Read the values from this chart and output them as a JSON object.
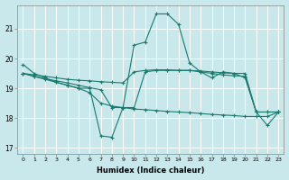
{
  "background_color": "#c8e8ec",
  "grid_color": "#aed4d8",
  "line_color": "#1a7a6e",
  "xlabel": "Humidex (Indice chaleur)",
  "xlim": [
    -0.5,
    23.5
  ],
  "ylim": [
    16.8,
    21.8
  ],
  "yticks": [
    17,
    18,
    19,
    20,
    21
  ],
  "series1": [
    19.8,
    19.5,
    19.35,
    19.2,
    19.1,
    19.0,
    19.0,
    17.4,
    17.35,
    18.35,
    20.45,
    20.55,
    21.5,
    21.5,
    21.15,
    19.85,
    19.55,
    19.35,
    19.55,
    19.5,
    19.35,
    18.2,
    17.75,
    18.2
  ],
  "series2": [
    19.5,
    19.45,
    19.4,
    19.35,
    19.3,
    19.27,
    19.25,
    19.22,
    19.2,
    19.18,
    19.55,
    19.6,
    19.62,
    19.62,
    19.6,
    19.6,
    19.58,
    19.55,
    19.52,
    19.5,
    19.5,
    18.2,
    18.2,
    18.2
  ],
  "series3": [
    19.5,
    19.4,
    19.32,
    19.25,
    19.18,
    19.1,
    19.02,
    18.95,
    18.35,
    18.35,
    18.35,
    19.55,
    19.6,
    19.6,
    19.6,
    19.6,
    19.55,
    19.5,
    19.45,
    19.42,
    19.4,
    18.2,
    18.2,
    18.2
  ],
  "series4": [
    19.5,
    19.4,
    19.3,
    19.2,
    19.1,
    19.0,
    18.85,
    18.5,
    18.4,
    18.35,
    18.3,
    18.28,
    18.25,
    18.22,
    18.2,
    18.18,
    18.15,
    18.12,
    18.1,
    18.08,
    18.05,
    18.05,
    18.05,
    18.2
  ]
}
